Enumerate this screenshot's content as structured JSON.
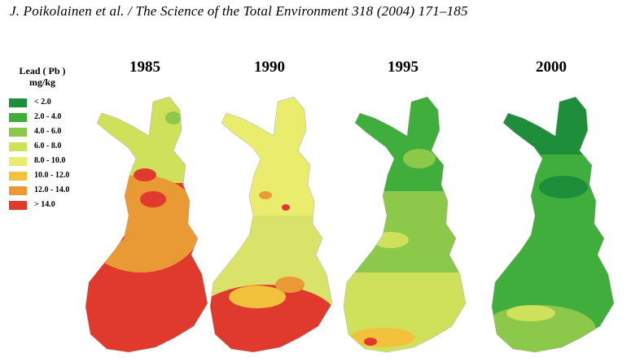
{
  "header": {
    "citation": "J. Poikolainen et al. / The Science of the Total Environment 318 (2004) 171–185"
  },
  "legend": {
    "title_line1": "Lead ( Pb )",
    "title_line2": "mg/kg",
    "items": [
      {
        "label": "< 2.0",
        "color": "#1e8e3a"
      },
      {
        "label": "2.0 - 4.0",
        "color": "#3fae3c"
      },
      {
        "label": "4.0 - 6.0",
        "color": "#8cc84a"
      },
      {
        "label": "6.0 - 8.0",
        "color": "#cfe05a"
      },
      {
        "label": "8.0 - 10.0",
        "color": "#eaec6e"
      },
      {
        "label": "10.0 - 12.0",
        "color": "#f3c23c"
      },
      {
        "label": "12.0 - 14.0",
        "color": "#e99a35"
      },
      {
        "label": "> 14.0",
        "color": "#e03a2e"
      }
    ]
  },
  "maps": [
    {
      "year": "1985",
      "region_color": "#e03a2e",
      "north_color": "#cfe05a",
      "mid_color": "#e99a35"
    },
    {
      "year": "1990",
      "region_color": "#e03a2e",
      "north_color": "#eaec6e",
      "mid_color": "#d9e36a"
    },
    {
      "year": "1995",
      "region_color": "#cfe05a",
      "north_color": "#3fae3c",
      "mid_color": "#8cc84a"
    },
    {
      "year": "2000",
      "region_color": "#8cc84a",
      "north_color": "#1e8e3a",
      "mid_color": "#3fae3c"
    }
  ]
}
